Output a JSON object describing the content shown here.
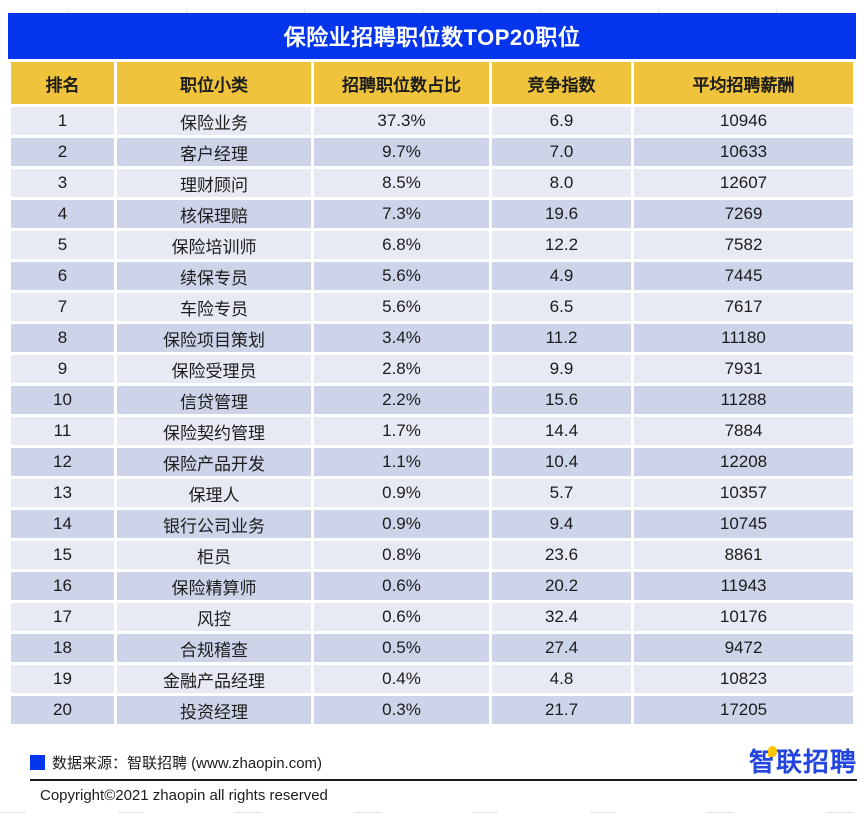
{
  "title": "保险业招聘职位数TOP20职位",
  "colors": {
    "header-blue": "#0435ec",
    "header-yellow": "#efc33b",
    "row-light": "#e7eaf3",
    "row-dark": "#cdd3e8",
    "text-dark": "#1c1c1c",
    "logo-blue": "#2446e0",
    "logo-yellow": "#ffc400"
  },
  "chart_data": {
    "type": "table",
    "title": "保险业招聘职位数TOP20职位",
    "columns": [
      "排名",
      "职位小类",
      "招聘职位数占比",
      "竞争指数",
      "平均招聘薪酬"
    ],
    "rows": [
      [
        "1",
        "保险业务",
        "37.3%",
        "6.9",
        "10946"
      ],
      [
        "2",
        "客户经理",
        "9.7%",
        "7.0",
        "10633"
      ],
      [
        "3",
        "理财顾问",
        "8.5%",
        "8.0",
        "12607"
      ],
      [
        "4",
        "核保理赔",
        "7.3%",
        "19.6",
        "7269"
      ],
      [
        "5",
        "保险培训师",
        "6.8%",
        "12.2",
        "7582"
      ],
      [
        "6",
        "续保专员",
        "5.6%",
        "4.9",
        "7445"
      ],
      [
        "7",
        "车险专员",
        "5.6%",
        "6.5",
        "7617"
      ],
      [
        "8",
        "保险项目策划",
        "3.4%",
        "11.2",
        "11180"
      ],
      [
        "9",
        "保险受理员",
        "2.8%",
        "9.9",
        "7931"
      ],
      [
        "10",
        "信贷管理",
        "2.2%",
        "15.6",
        "11288"
      ],
      [
        "11",
        "保险契约管理",
        "1.7%",
        "14.4",
        "7884"
      ],
      [
        "12",
        "保险产品开发",
        "1.1%",
        "10.4",
        "12208"
      ],
      [
        "13",
        "保理人",
        "0.9%",
        "5.7",
        "10357"
      ],
      [
        "14",
        "银行公司业务",
        "0.9%",
        "9.4",
        "10745"
      ],
      [
        "15",
        "柜员",
        "0.8%",
        "23.6",
        "8861"
      ],
      [
        "16",
        "保险精算师",
        "0.6%",
        "20.2",
        "11943"
      ],
      [
        "17",
        "风控",
        "0.6%",
        "32.4",
        "10176"
      ],
      [
        "18",
        "合规稽查",
        "0.5%",
        "27.4",
        "9472"
      ],
      [
        "19",
        "金融产品经理",
        "0.4%",
        "4.8",
        "10823"
      ],
      [
        "20",
        "投资经理",
        "0.3%",
        "21.7",
        "17205"
      ]
    ]
  },
  "footer": {
    "source_label": "数据来源：智联招聘 (www.zhaopin.com)",
    "copyright": "Copyright©2021 zhaopin all rights reserved",
    "logo_char_first": "智",
    "logo_chars_rest": "联招聘"
  }
}
